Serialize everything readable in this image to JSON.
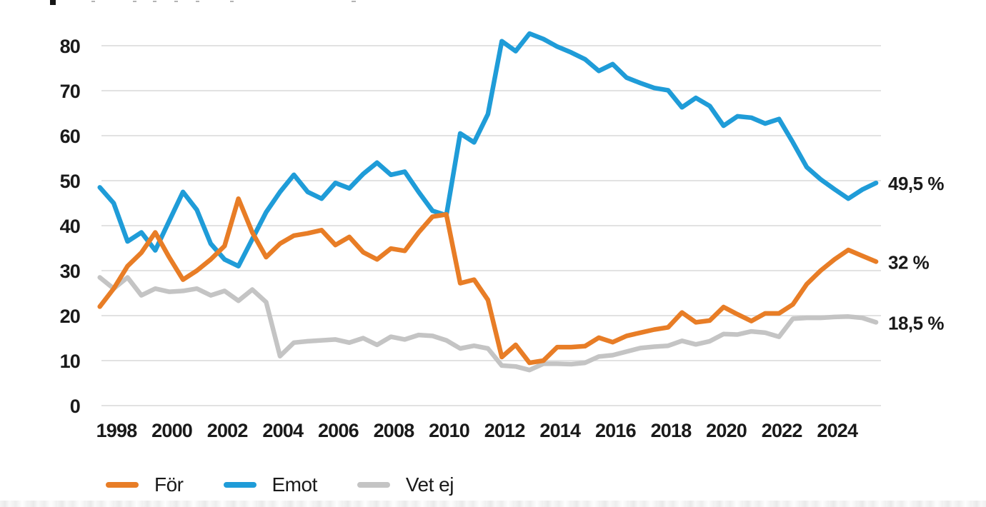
{
  "colors": {
    "for_orange": "#E87D26",
    "emot_blue": "#1F9CD8",
    "vetej_gray": "#C4C4C4",
    "grid": "#D9D9D9",
    "text": "#1A1A1A"
  },
  "legend": {
    "items": [
      {
        "label": "För",
        "color": "#E87D26"
      },
      {
        "label": "Emot",
        "color": "#1F9CD8"
      },
      {
        "label": "Vet ej",
        "color": "#C4C4C4"
      }
    ]
  },
  "chart_data": {
    "type": "line",
    "grid": "horizontal",
    "legend_position": "bottom-left",
    "x_axis": {
      "range": [
        1997.1,
        2026.0
      ],
      "ticks": [
        1998,
        2000,
        2002,
        2004,
        2006,
        2008,
        2010,
        2012,
        2014,
        2016,
        2018,
        2020,
        2022,
        2024
      ],
      "tick_labels": [
        "1998",
        "2000",
        "2002",
        "2004",
        "2006",
        "2008",
        "2010",
        "2012",
        "2014",
        "2016",
        "2018",
        "2020",
        "2022",
        "2024"
      ]
    },
    "y_axis": {
      "range": [
        0,
        80
      ],
      "ticks": [
        0,
        10,
        20,
        30,
        40,
        50,
        60,
        70,
        80
      ],
      "tick_labels": [
        "0",
        "10",
        "20",
        "30",
        "40",
        "50",
        "60",
        "70",
        "80"
      ]
    },
    "series": [
      {
        "name": "För",
        "color": "#E87D26",
        "end_label": "32 %",
        "points": [
          [
            1997.4,
            22
          ],
          [
            1997.9,
            26
          ],
          [
            1998.4,
            31
          ],
          [
            1998.9,
            34
          ],
          [
            1999.4,
            38.5
          ],
          [
            1999.9,
            33
          ],
          [
            2000.4,
            28
          ],
          [
            2000.9,
            30
          ],
          [
            2001.4,
            32.5
          ],
          [
            2001.9,
            35.5
          ],
          [
            2002.4,
            46
          ],
          [
            2002.9,
            38.5
          ],
          [
            2003.4,
            33
          ],
          [
            2003.9,
            36
          ],
          [
            2004.4,
            37.8
          ],
          [
            2004.9,
            38.3
          ],
          [
            2005.4,
            39
          ],
          [
            2005.9,
            35.7
          ],
          [
            2006.4,
            37.5
          ],
          [
            2006.9,
            34.1
          ],
          [
            2007.4,
            32.5
          ],
          [
            2007.9,
            34.9
          ],
          [
            2008.4,
            34.4
          ],
          [
            2008.9,
            38.5
          ],
          [
            2009.4,
            42
          ],
          [
            2009.9,
            42.5
          ],
          [
            2010.4,
            27.2
          ],
          [
            2010.9,
            28
          ],
          [
            2011.4,
            23.5
          ],
          [
            2011.9,
            10.8
          ],
          [
            2012.4,
            13.5
          ],
          [
            2012.9,
            9.5
          ],
          [
            2013.4,
            10
          ],
          [
            2013.9,
            13
          ],
          [
            2014.4,
            13
          ],
          [
            2014.9,
            13.2
          ],
          [
            2015.4,
            15.1
          ],
          [
            2015.9,
            14.1
          ],
          [
            2016.4,
            15.5
          ],
          [
            2016.9,
            16.2
          ],
          [
            2017.4,
            16.9
          ],
          [
            2017.9,
            17.4
          ],
          [
            2018.4,
            20.7
          ],
          [
            2018.9,
            18.5
          ],
          [
            2019.4,
            18.9
          ],
          [
            2019.9,
            21.9
          ],
          [
            2020.4,
            20.3
          ],
          [
            2020.9,
            18.8
          ],
          [
            2021.4,
            20.5
          ],
          [
            2021.9,
            20.5
          ],
          [
            2022.4,
            22.5
          ],
          [
            2022.9,
            27
          ],
          [
            2023.4,
            30
          ],
          [
            2023.9,
            32.5
          ],
          [
            2024.4,
            34.6
          ],
          [
            2024.9,
            33.3
          ],
          [
            2025.4,
            32
          ]
        ]
      },
      {
        "name": "Emot",
        "color": "#1F9CD8",
        "end_label": "49,5 %",
        "points": [
          [
            1997.4,
            48.5
          ],
          [
            1997.9,
            45
          ],
          [
            1998.4,
            36.5
          ],
          [
            1998.9,
            38.5
          ],
          [
            1999.4,
            34.5
          ],
          [
            1999.9,
            41
          ],
          [
            2000.4,
            47.5
          ],
          [
            2000.9,
            43.5
          ],
          [
            2001.4,
            36
          ],
          [
            2001.9,
            32.5
          ],
          [
            2002.4,
            31
          ],
          [
            2002.9,
            37
          ],
          [
            2003.4,
            43
          ],
          [
            2003.9,
            47.5
          ],
          [
            2004.4,
            51.3
          ],
          [
            2004.9,
            47.5
          ],
          [
            2005.4,
            46
          ],
          [
            2005.9,
            49.5
          ],
          [
            2006.4,
            48.3
          ],
          [
            2006.9,
            51.5
          ],
          [
            2007.4,
            54
          ],
          [
            2007.9,
            51.3
          ],
          [
            2008.4,
            52
          ],
          [
            2008.9,
            47.5
          ],
          [
            2009.4,
            43.3
          ],
          [
            2009.9,
            42.3
          ],
          [
            2010.4,
            60.5
          ],
          [
            2010.9,
            58.5
          ],
          [
            2011.4,
            64.8
          ],
          [
            2011.9,
            81
          ],
          [
            2012.4,
            78.8
          ],
          [
            2012.9,
            82.7
          ],
          [
            2013.4,
            81.5
          ],
          [
            2013.9,
            79.8
          ],
          [
            2014.4,
            78.5
          ],
          [
            2014.9,
            77
          ],
          [
            2015.4,
            74.4
          ],
          [
            2015.9,
            75.9
          ],
          [
            2016.4,
            72.9
          ],
          [
            2016.9,
            71.7
          ],
          [
            2017.4,
            70.6
          ],
          [
            2017.9,
            70.1
          ],
          [
            2018.4,
            66.3
          ],
          [
            2018.9,
            68.4
          ],
          [
            2019.4,
            66.6
          ],
          [
            2019.9,
            62.2
          ],
          [
            2020.4,
            64.3
          ],
          [
            2020.9,
            64
          ],
          [
            2021.4,
            62.7
          ],
          [
            2021.9,
            63.7
          ],
          [
            2022.4,
            58.5
          ],
          [
            2022.9,
            53
          ],
          [
            2023.4,
            50.3
          ],
          [
            2023.9,
            48.1
          ],
          [
            2024.4,
            46
          ],
          [
            2024.9,
            48
          ],
          [
            2025.4,
            49.5
          ]
        ]
      },
      {
        "name": "Vet ej",
        "color": "#C4C4C4",
        "end_label": "18,5 %",
        "points": [
          [
            1997.4,
            28.5
          ],
          [
            1997.9,
            26
          ],
          [
            1998.4,
            28.5
          ],
          [
            1998.9,
            24.5
          ],
          [
            1999.4,
            26
          ],
          [
            1999.9,
            25.3
          ],
          [
            2000.4,
            25.5
          ],
          [
            2000.9,
            26
          ],
          [
            2001.4,
            24.5
          ],
          [
            2001.9,
            25.5
          ],
          [
            2002.4,
            23.3
          ],
          [
            2002.9,
            25.8
          ],
          [
            2003.4,
            23
          ],
          [
            2003.9,
            11
          ],
          [
            2004.4,
            14
          ],
          [
            2004.9,
            14.3
          ],
          [
            2005.4,
            14.5
          ],
          [
            2005.9,
            14.7
          ],
          [
            2006.4,
            14
          ],
          [
            2006.9,
            15
          ],
          [
            2007.4,
            13.5
          ],
          [
            2007.9,
            15.3
          ],
          [
            2008.4,
            14.7
          ],
          [
            2008.9,
            15.7
          ],
          [
            2009.4,
            15.5
          ],
          [
            2009.9,
            14.5
          ],
          [
            2010.4,
            12.7
          ],
          [
            2010.9,
            13.3
          ],
          [
            2011.4,
            12.7
          ],
          [
            2011.9,
            8.9
          ],
          [
            2012.4,
            8.7
          ],
          [
            2012.9,
            7.9
          ],
          [
            2013.4,
            9.3
          ],
          [
            2013.9,
            9.3
          ],
          [
            2014.4,
            9.2
          ],
          [
            2014.9,
            9.5
          ],
          [
            2015.4,
            10.9
          ],
          [
            2015.9,
            11.2
          ],
          [
            2016.4,
            12
          ],
          [
            2016.9,
            12.8
          ],
          [
            2017.4,
            13.1
          ],
          [
            2017.9,
            13.3
          ],
          [
            2018.4,
            14.4
          ],
          [
            2018.9,
            13.6
          ],
          [
            2019.4,
            14.3
          ],
          [
            2019.9,
            15.9
          ],
          [
            2020.4,
            15.8
          ],
          [
            2020.9,
            16.5
          ],
          [
            2021.4,
            16.2
          ],
          [
            2021.9,
            15.3
          ],
          [
            2022.4,
            19.3
          ],
          [
            2022.9,
            19.5
          ],
          [
            2023.4,
            19.5
          ],
          [
            2023.9,
            19.7
          ],
          [
            2024.4,
            19.8
          ],
          [
            2024.9,
            19.5
          ],
          [
            2025.4,
            18.5
          ]
        ]
      }
    ]
  }
}
